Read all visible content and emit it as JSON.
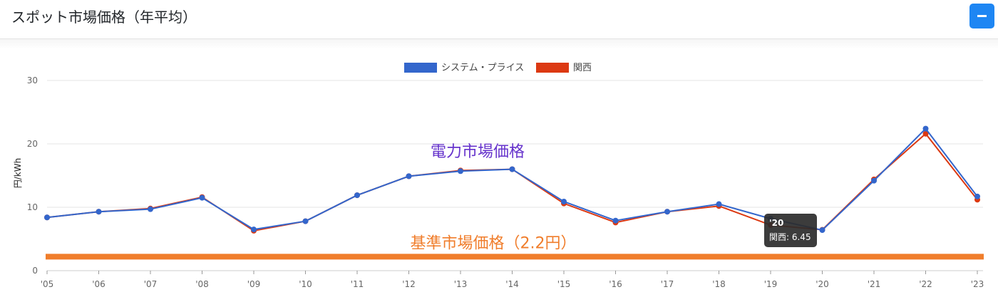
{
  "header": {
    "title": "スポット市場価格（年平均）",
    "collapse_icon": "minus-icon"
  },
  "colors": {
    "system_price": "#3366cc",
    "kansai": "#dc3912",
    "base_line": "#f07d2b",
    "annotation_purple": "#6633cc",
    "collapse_button": "#1e86f3"
  },
  "chart_data": {
    "type": "line",
    "x": [
      "'05",
      "'06",
      "'07",
      "'08",
      "'09",
      "'10",
      "'11",
      "'12",
      "'13",
      "'14",
      "'15",
      "'16",
      "'17",
      "'18",
      "'19",
      "'20",
      "'21",
      "'22",
      "'23"
    ],
    "series": [
      {
        "name": "システム・プライス",
        "values": [
          8.4,
          9.3,
          9.7,
          11.5,
          6.5,
          7.8,
          11.9,
          14.9,
          15.7,
          16.0,
          10.9,
          7.9,
          9.3,
          10.5,
          8.2,
          6.4,
          14.2,
          22.4,
          11.7
        ]
      },
      {
        "name": "関西",
        "values": [
          8.4,
          9.3,
          9.8,
          11.6,
          6.3,
          7.8,
          11.9,
          14.9,
          15.8,
          16.0,
          10.6,
          7.6,
          9.3,
          10.2,
          7.2,
          6.45,
          14.4,
          21.6,
          11.2
        ]
      }
    ],
    "ylabel": "円/kWh",
    "y_ticks": [
      "0",
      "10",
      "20",
      "30"
    ],
    "ylim": [
      0,
      30
    ],
    "grid": true,
    "legend_position": "top-center",
    "reference_line": {
      "value": 2.2,
      "label": "基準市場価格（2.2円）"
    },
    "annotation_text": "電力市場価格",
    "tooltip": {
      "title": "'20",
      "label": "関西: 6.45"
    }
  }
}
